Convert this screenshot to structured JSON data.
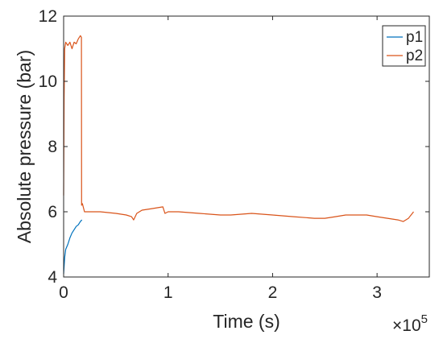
{
  "chart_data": {
    "type": "line",
    "xlabel": "Time (s)",
    "ylabel": "Absolute pressure (bar)",
    "x_exponent_base": "×10",
    "x_exponent": "5",
    "xlim": [
      0,
      3.5
    ],
    "ylim": [
      4,
      12
    ],
    "xticks": [
      0,
      1,
      2,
      3
    ],
    "xtick_labels": [
      "0",
      "1",
      "2",
      "3"
    ],
    "yticks": [
      4,
      6,
      8,
      10,
      12
    ],
    "ytick_labels": [
      "4",
      "6",
      "8",
      "10",
      "12"
    ],
    "grid": false,
    "legend_position": "top-right",
    "series": [
      {
        "name": "p1",
        "color": "#0072BD",
        "x": [
          0,
          0.01,
          0.02,
          0.04,
          0.06,
          0.08,
          0.1,
          0.12,
          0.14,
          0.16,
          0.175
        ],
        "y": [
          4.1,
          4.6,
          4.85,
          5.0,
          5.2,
          5.35,
          5.45,
          5.55,
          5.6,
          5.7,
          5.75
        ]
      },
      {
        "name": "p2",
        "color": "#D95319",
        "x": [
          0,
          0.005,
          0.01,
          0.02,
          0.04,
          0.06,
          0.08,
          0.1,
          0.12,
          0.14,
          0.16,
          0.17,
          0.172,
          0.18,
          0.2,
          0.25,
          0.35,
          0.5,
          0.6,
          0.65,
          0.67,
          0.7,
          0.75,
          0.85,
          0.95,
          0.97,
          1.0,
          1.1,
          1.3,
          1.5,
          1.6,
          1.8,
          2.0,
          2.2,
          2.4,
          2.5,
          2.6,
          2.7,
          2.9,
          3.0,
          3.1,
          3.2,
          3.25,
          3.3,
          3.35
        ],
        "y": [
          6.5,
          9.5,
          11.0,
          11.2,
          11.1,
          11.2,
          11.0,
          11.2,
          11.15,
          11.3,
          11.4,
          11.35,
          6.2,
          6.25,
          6.0,
          6.0,
          6.0,
          5.95,
          5.9,
          5.85,
          5.75,
          5.95,
          6.05,
          6.1,
          6.15,
          5.95,
          6.0,
          6.0,
          5.95,
          5.9,
          5.9,
          5.95,
          5.9,
          5.85,
          5.8,
          5.8,
          5.85,
          5.9,
          5.9,
          5.85,
          5.8,
          5.75,
          5.7,
          5.8,
          6.0
        ]
      }
    ]
  }
}
